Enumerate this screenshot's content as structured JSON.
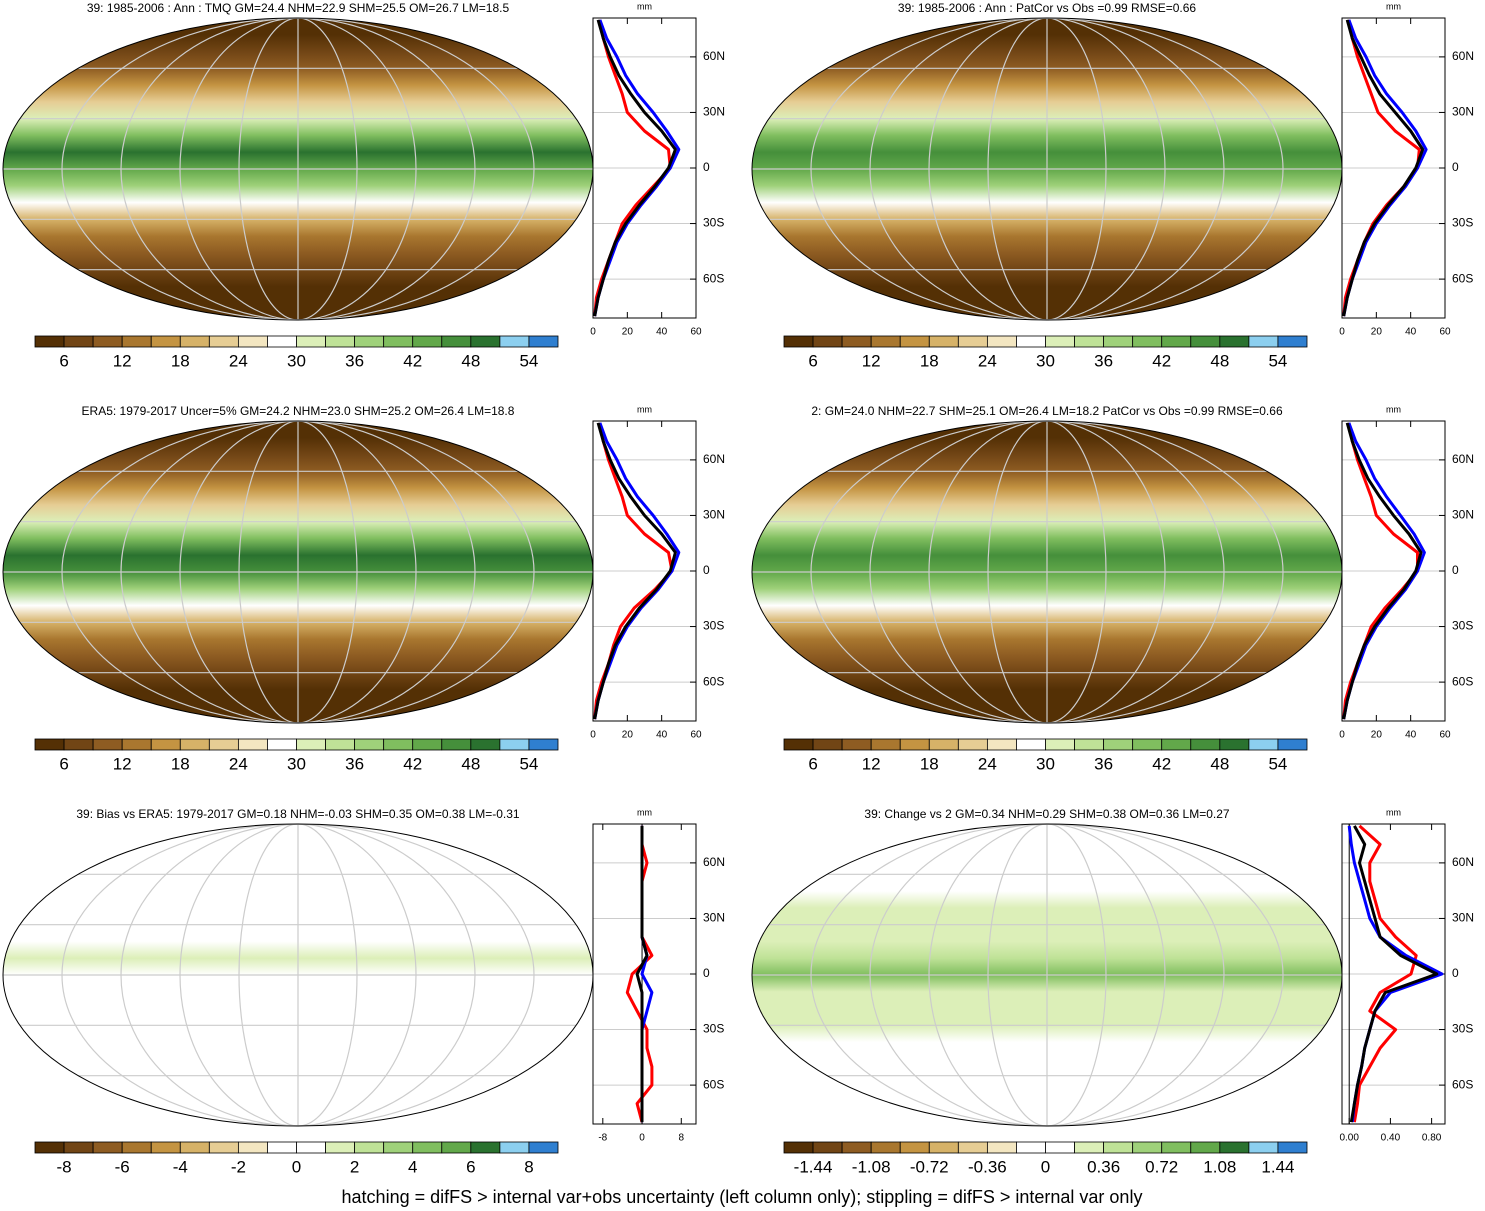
{
  "chart_data": [
    {
      "type": "line",
      "title": "39: 1985-2006 : Ann : TMQ GM=24.4 NHM=22.9 SHM=25.5 OM=26.7 LM=18.5",
      "unit": "mm",
      "y": [
        -80,
        -70,
        -60,
        -50,
        -40,
        -30,
        -20,
        -10,
        0,
        10,
        20,
        30,
        40,
        50,
        60,
        70,
        80
      ],
      "ylim": [
        -81,
        81
      ],
      "yticks": [
        {
          "value": -60,
          "label": "60S"
        },
        {
          "value": -30,
          "label": "30S"
        },
        0,
        {
          "value": 30,
          "label": "30N"
        },
        {
          "value": 60,
          "label": "60N"
        }
      ],
      "xlim": [
        0,
        60
      ],
      "xticks": [
        0,
        20,
        40,
        60
      ],
      "series": [
        {
          "color": "#ff0000",
          "values": [
            1,
            2,
            5,
            9,
            13,
            17,
            25,
            35,
            45,
            44,
            30,
            20,
            17,
            13,
            9,
            6,
            4
          ]
        },
        {
          "color": "#0000ff",
          "values": [
            1,
            3,
            6,
            10,
            14,
            20,
            28,
            37,
            45,
            50,
            43,
            35,
            26,
            19,
            14,
            8,
            4
          ]
        },
        {
          "color": "#000000",
          "values": [
            1,
            3,
            6,
            9,
            13,
            19,
            27,
            36,
            44,
            48,
            40,
            30,
            22,
            15,
            10,
            6,
            3
          ]
        }
      ],
      "colorbar": {
        "colors": [
          "#543005",
          "#714515",
          "#8e5c22",
          "#a9772f",
          "#c49442",
          "#d6b268",
          "#e6cd94",
          "#f3e6c1",
          "#ffffff",
          "#dcefb8",
          "#bfe297",
          "#9fd17a",
          "#80be5f",
          "#62a84a",
          "#458f3b",
          "#2a722f",
          "#8ccfef",
          "#2f7fd0"
        ],
        "lim": [
          3,
          57
        ],
        "ticks": [
          6,
          12,
          18,
          24,
          30,
          36,
          42,
          48,
          54
        ]
      }
    },
    {
      "type": "line",
      "title": "39: 1985-2006 : Ann : PatCor vs Obs =0.99 RMSE=0.66",
      "unit": "mm",
      "y": [
        -80,
        -70,
        -60,
        -50,
        -40,
        -30,
        -20,
        -10,
        0,
        10,
        20,
        30,
        40,
        50,
        60,
        70,
        80
      ],
      "ylim": [
        -81,
        81
      ],
      "yticks": [
        {
          "value": -60,
          "label": "60S"
        },
        {
          "value": -30,
          "label": "30S"
        },
        0,
        {
          "value": 30,
          "label": "30N"
        },
        {
          "value": 60,
          "label": "60N"
        }
      ],
      "xlim": [
        0,
        60
      ],
      "xticks": [
        0,
        20,
        40,
        60
      ],
      "series": [
        {
          "color": "#ff0000",
          "values": [
            1,
            2,
            5,
            9,
            13,
            18,
            26,
            36,
            44,
            45,
            31,
            21,
            17,
            13,
            9,
            6,
            4
          ]
        },
        {
          "color": "#0000ff",
          "values": [
            1,
            3,
            6,
            10,
            14,
            20,
            28,
            37,
            44,
            49,
            43,
            35,
            26,
            19,
            14,
            8,
            4
          ]
        },
        {
          "color": "#000000",
          "values": [
            1,
            3,
            6,
            9,
            13,
            19,
            27,
            36,
            43,
            47,
            40,
            31,
            22,
            16,
            11,
            6,
            3
          ]
        }
      ],
      "colorbar": {
        "colors": [
          "#543005",
          "#714515",
          "#8e5c22",
          "#a9772f",
          "#c49442",
          "#d6b268",
          "#e6cd94",
          "#f3e6c1",
          "#ffffff",
          "#dcefb8",
          "#bfe297",
          "#9fd17a",
          "#80be5f",
          "#62a84a",
          "#458f3b",
          "#2a722f",
          "#8ccfef",
          "#2f7fd0"
        ],
        "lim": [
          3,
          57
        ],
        "ticks": [
          6,
          12,
          18,
          24,
          30,
          36,
          42,
          48,
          54
        ]
      }
    },
    {
      "type": "line",
      "title": "ERA5: 1979-2017 Uncer=5% GM=24.2 NHM=23.0 SHM=25.2 OM=26.4 LM=18.8",
      "unit": "mm",
      "y": [
        -80,
        -70,
        -60,
        -50,
        -40,
        -30,
        -20,
        -10,
        0,
        10,
        20,
        30,
        40,
        50,
        60,
        70,
        80
      ],
      "ylim": [
        -81,
        81
      ],
      "yticks": [
        {
          "value": -60,
          "label": "60S"
        },
        {
          "value": -30,
          "label": "30S"
        },
        0,
        {
          "value": 30,
          "label": "30N"
        },
        {
          "value": 60,
          "label": "60N"
        }
      ],
      "xlim": [
        0,
        60
      ],
      "xticks": [
        0,
        20,
        40,
        60
      ],
      "series": [
        {
          "color": "#ff0000",
          "values": [
            1,
            2,
            5,
            9,
            12,
            16,
            24,
            36,
            46,
            44,
            30,
            20,
            17,
            13,
            9,
            6,
            4
          ]
        },
        {
          "color": "#0000ff",
          "values": [
            1,
            3,
            6,
            10,
            14,
            20,
            28,
            38,
            46,
            50,
            43,
            35,
            26,
            19,
            14,
            8,
            4
          ]
        },
        {
          "color": "#000000",
          "values": [
            1,
            3,
            6,
            9,
            13,
            19,
            27,
            37,
            45,
            48,
            40,
            30,
            22,
            15,
            10,
            6,
            3
          ]
        }
      ],
      "colorbar": {
        "colors": [
          "#543005",
          "#714515",
          "#8e5c22",
          "#a9772f",
          "#c49442",
          "#d6b268",
          "#e6cd94",
          "#f3e6c1",
          "#ffffff",
          "#dcefb8",
          "#bfe297",
          "#9fd17a",
          "#80be5f",
          "#62a84a",
          "#458f3b",
          "#2a722f",
          "#8ccfef",
          "#2f7fd0"
        ],
        "lim": [
          3,
          57
        ],
        "ticks": [
          6,
          12,
          18,
          24,
          30,
          36,
          42,
          48,
          54
        ]
      }
    },
    {
      "type": "line",
      "title": "2: GM=24.0 NHM=22.7 SHM=25.1 OM=26.4 LM=18.2 PatCor vs Obs =0.99 RMSE=0.66",
      "unit": "mm",
      "y": [
        -80,
        -70,
        -60,
        -50,
        -40,
        -30,
        -20,
        -10,
        0,
        10,
        20,
        30,
        40,
        50,
        60,
        70,
        80
      ],
      "ylim": [
        -81,
        81
      ],
      "yticks": [
        {
          "value": -60,
          "label": "60S"
        },
        {
          "value": -30,
          "label": "30S"
        },
        0,
        {
          "value": 30,
          "label": "30N"
        },
        {
          "value": 60,
          "label": "60N"
        }
      ],
      "xlim": [
        0,
        60
      ],
      "xticks": [
        0,
        20,
        40,
        60
      ],
      "series": [
        {
          "color": "#ff0000",
          "values": [
            1,
            2,
            5,
            9,
            13,
            17,
            25,
            35,
            44,
            44,
            30,
            20,
            17,
            13,
            9,
            6,
            4
          ]
        },
        {
          "color": "#0000ff",
          "values": [
            1,
            3,
            6,
            10,
            14,
            20,
            28,
            37,
            44,
            48,
            42,
            34,
            26,
            19,
            14,
            8,
            4
          ]
        },
        {
          "color": "#000000",
          "values": [
            1,
            3,
            6,
            9,
            13,
            19,
            27,
            36,
            43,
            46,
            39,
            30,
            22,
            15,
            10,
            6,
            3
          ]
        }
      ],
      "colorbar": {
        "colors": [
          "#543005",
          "#714515",
          "#8e5c22",
          "#a9772f",
          "#c49442",
          "#d6b268",
          "#e6cd94",
          "#f3e6c1",
          "#ffffff",
          "#dcefb8",
          "#bfe297",
          "#9fd17a",
          "#80be5f",
          "#62a84a",
          "#458f3b",
          "#2a722f",
          "#8ccfef",
          "#2f7fd0"
        ],
        "lim": [
          3,
          57
        ],
        "ticks": [
          6,
          12,
          18,
          24,
          30,
          36,
          42,
          48,
          54
        ]
      }
    },
    {
      "type": "line",
      "title": "39: Bias vs ERA5: 1979-2017 GM=0.18 NHM=-0.03 SHM=0.35 OM=0.38 LM=-0.31",
      "unit": "mm",
      "y": [
        -80,
        -70,
        -60,
        -50,
        -40,
        -30,
        -20,
        -10,
        0,
        10,
        20,
        30,
        40,
        50,
        60,
        70,
        80
      ],
      "ylim": [
        -81,
        81
      ],
      "yticks": [
        {
          "value": -60,
          "label": "60S"
        },
        {
          "value": -30,
          "label": "30S"
        },
        0,
        {
          "value": 30,
          "label": "30N"
        },
        {
          "value": 60,
          "label": "60N"
        }
      ],
      "xlim": [
        -10,
        11
      ],
      "xticks": [
        -8,
        0,
        8
      ],
      "series": [
        {
          "color": "#ff0000",
          "values": [
            0,
            -1,
            2,
            2,
            1,
            1,
            -1,
            -3,
            -2,
            2,
            0,
            0,
            0,
            0,
            1,
            0,
            0
          ]
        },
        {
          "color": "#0000ff",
          "values": [
            0,
            0,
            0,
            0,
            0,
            0,
            1,
            2,
            0,
            1,
            0,
            0,
            0,
            0,
            0,
            0,
            0
          ]
        },
        {
          "color": "#000000",
          "values": [
            0,
            0,
            0,
            0,
            0,
            0,
            0,
            0,
            -1,
            1,
            0,
            0,
            0,
            0,
            0,
            0,
            0
          ]
        }
      ],
      "colorbar": {
        "colors": [
          "#543005",
          "#714515",
          "#8e5c22",
          "#a9772f",
          "#c49442",
          "#d6b268",
          "#e6cd94",
          "#f3e6c1",
          "#ffffff",
          "#ffffff",
          "#dcefb8",
          "#bfe297",
          "#9fd17a",
          "#80be5f",
          "#62a84a",
          "#2a722f",
          "#8ccfef",
          "#2f7fd0"
        ],
        "lim": [
          -9,
          9
        ],
        "ticks": [
          -8,
          -6,
          -4,
          -2,
          0,
          2,
          4,
          6,
          8
        ]
      }
    },
    {
      "type": "line",
      "title": "39: Change vs 2 GM=0.34 NHM=0.29 SHM=0.38 OM=0.36 LM=0.27",
      "unit": "mm",
      "y": [
        -80,
        -70,
        -60,
        -50,
        -40,
        -30,
        -20,
        -10,
        0,
        10,
        20,
        30,
        40,
        50,
        60,
        70,
        80
      ],
      "ylim": [
        -81,
        81
      ],
      "yticks": [
        {
          "value": -60,
          "label": "60S"
        },
        {
          "value": -30,
          "label": "30S"
        },
        0,
        {
          "value": 30,
          "label": "30N"
        },
        {
          "value": 60,
          "label": "60N"
        }
      ],
      "xlim": [
        -0.07,
        0.93
      ],
      "xticks": [
        {
          "value": 0,
          "label": "0.00"
        },
        {
          "value": 0.4,
          "label": "0.40"
        },
        {
          "value": 0.8,
          "label": "0.80"
        }
      ],
      "series": [
        {
          "color": "#ff0000",
          "values": [
            0.05,
            0.08,
            0.1,
            0.2,
            0.3,
            0.45,
            0.2,
            0.3,
            0.6,
            0.65,
            0.45,
            0.3,
            0.25,
            0.2,
            0.2,
            0.3,
            0.1
          ]
        },
        {
          "color": "#0000ff",
          "values": [
            0.03,
            0.05,
            0.08,
            0.12,
            0.15,
            0.2,
            0.25,
            0.4,
            0.9,
            0.55,
            0.3,
            0.2,
            0.15,
            0.1,
            0.05,
            0.02,
            0.0
          ]
        },
        {
          "color": "#000000",
          "values": [
            0.02,
            0.05,
            0.08,
            0.12,
            0.15,
            0.2,
            0.25,
            0.35,
            0.85,
            0.5,
            0.3,
            0.25,
            0.2,
            0.15,
            0.1,
            0.15,
            0.05
          ]
        }
      ],
      "colorbar": {
        "colors": [
          "#543005",
          "#714515",
          "#8e5c22",
          "#a9772f",
          "#c49442",
          "#d6b268",
          "#e6cd94",
          "#f3e6c1",
          "#ffffff",
          "#ffffff",
          "#dcefb8",
          "#bfe297",
          "#9fd17a",
          "#80be5f",
          "#62a84a",
          "#2a722f",
          "#8ccfef",
          "#2f7fd0"
        ],
        "lim": [
          -1.62,
          1.62
        ],
        "ticks": [
          -1.44,
          -1.08,
          -0.72,
          -0.36,
          0,
          0.36,
          0.72,
          1.08,
          1.44
        ]
      }
    }
  ],
  "footnote": "hatching = difFS > internal var+obs uncertainty (left column only); stippling = difFS > internal var only"
}
